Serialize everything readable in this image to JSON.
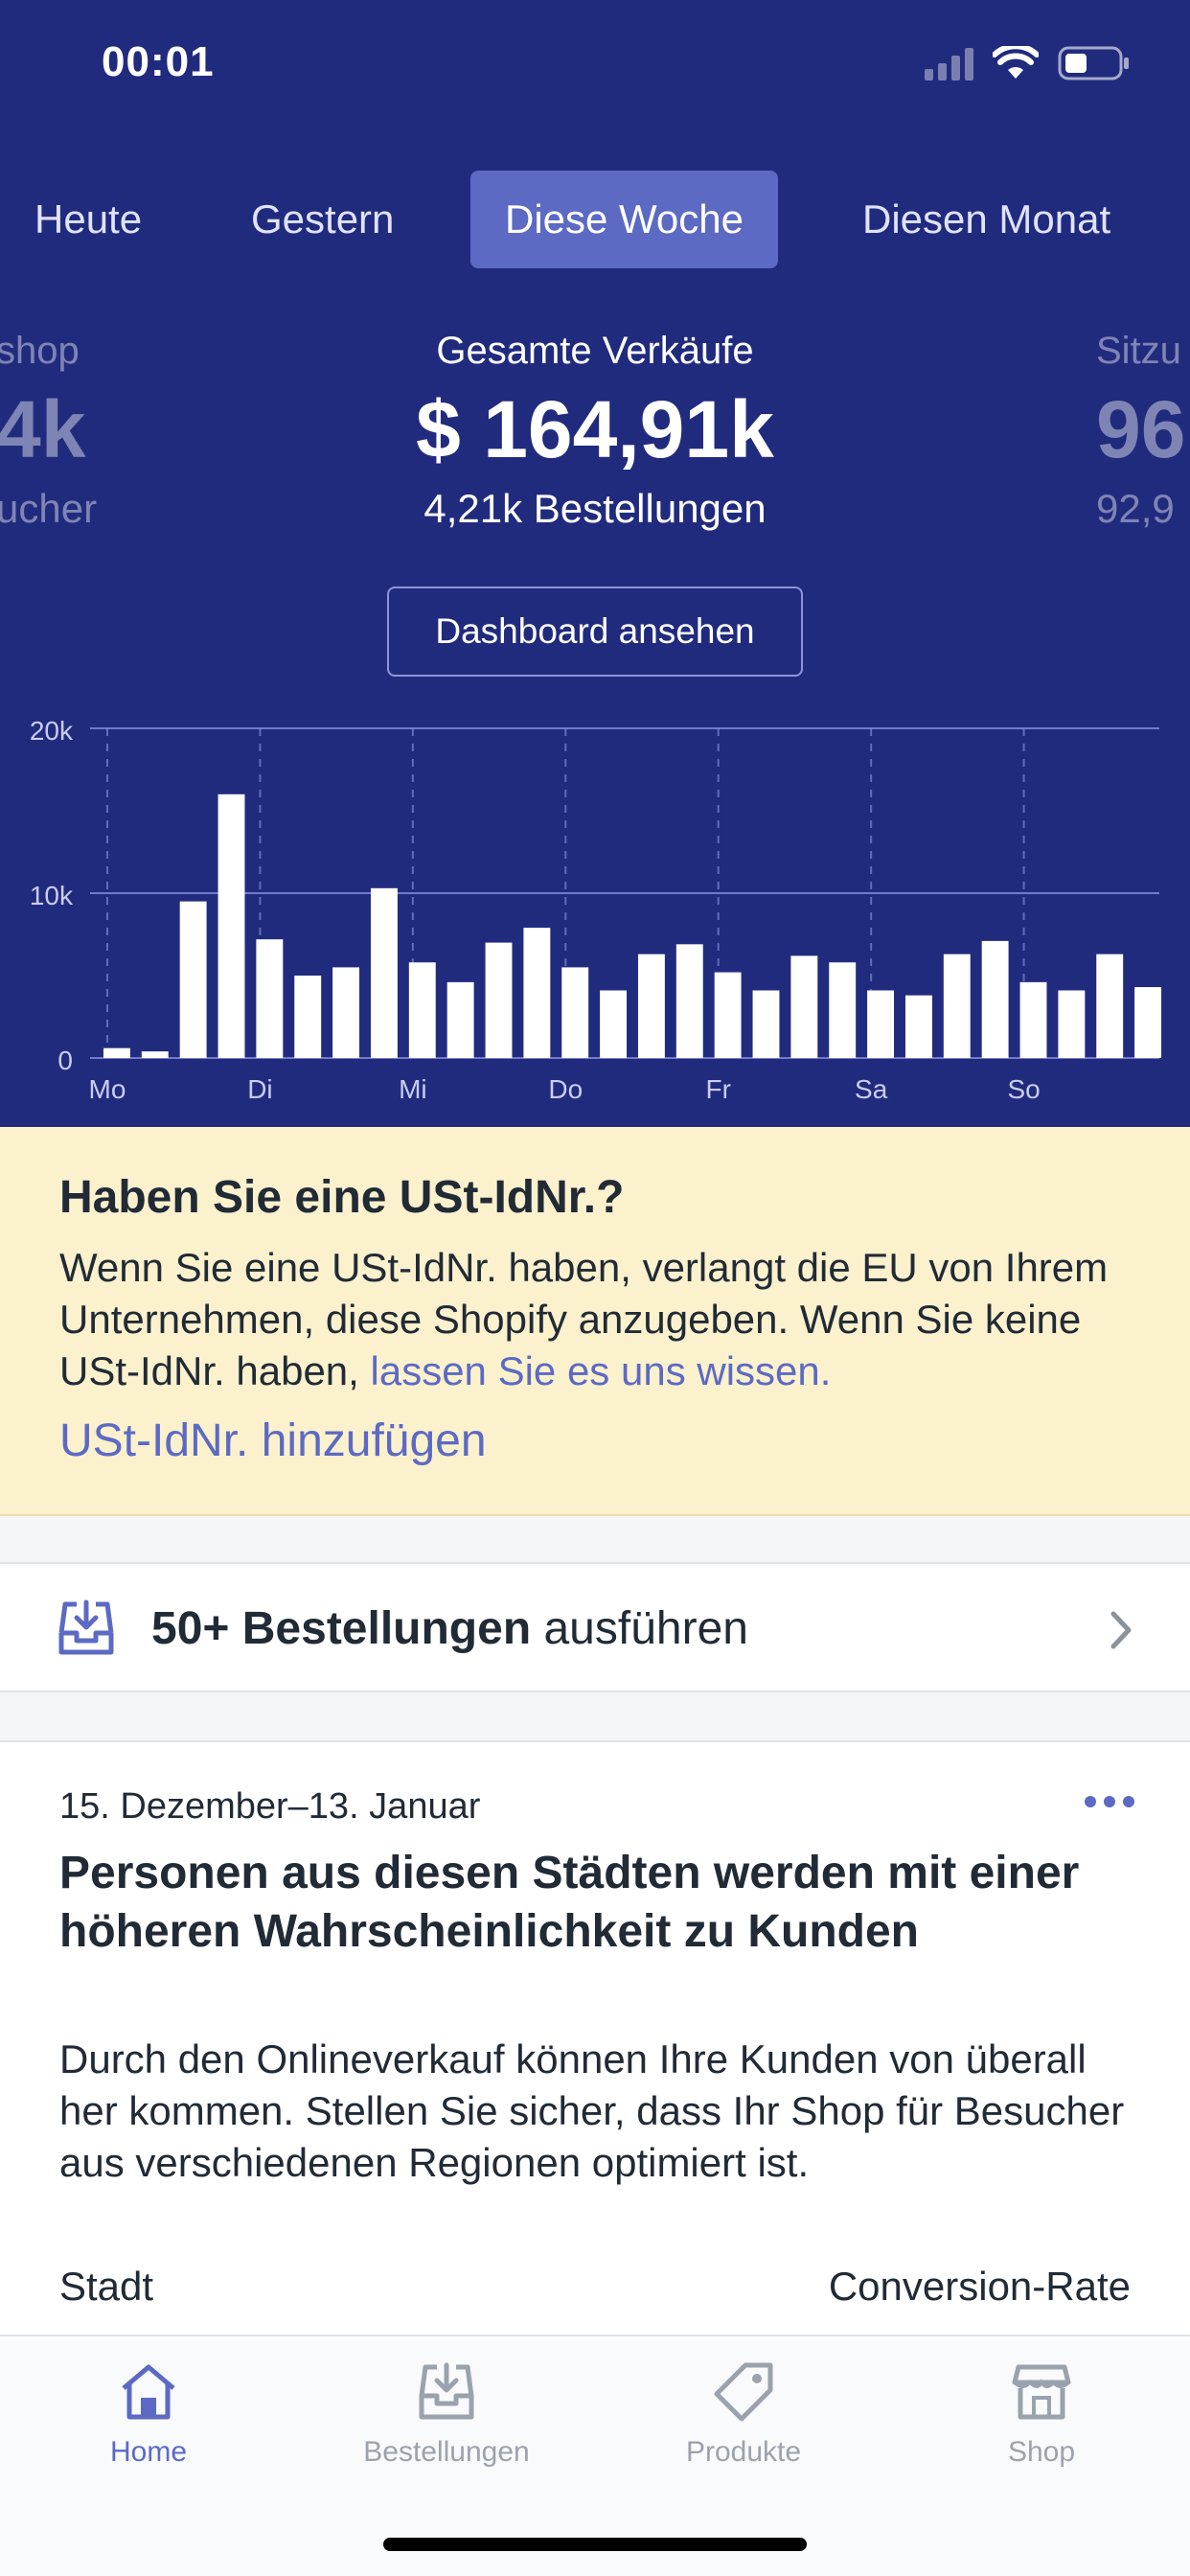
{
  "status_bar": {
    "time": "00:01"
  },
  "period_tabs": [
    {
      "label": "Heute",
      "active": false
    },
    {
      "label": "Gestern",
      "active": false
    },
    {
      "label": "Diese Woche",
      "active": true
    },
    {
      "label": "Diesen Monat",
      "active": false
    }
  ],
  "metrics": {
    "left": {
      "label": "shop",
      "value": "4k",
      "sub": "ucher"
    },
    "center": {
      "label": "Gesamte Verkäufe",
      "value": "$ 164,91k",
      "sub": "4,21k Bestellungen"
    },
    "right": {
      "label": "Sitzu",
      "value": "96",
      "sub": "92,9"
    }
  },
  "dashboard_button": "Dashboard ansehen",
  "chart_data": {
    "type": "bar",
    "title": "",
    "xlabel": "",
    "ylabel": "",
    "ylim": [
      0,
      20000
    ],
    "ytick_labels": [
      "20k",
      "10k",
      "0"
    ],
    "ytick_values": [
      20000,
      10000,
      0
    ],
    "day_labels": [
      "Mo",
      "Di",
      "Mi",
      "Do",
      "Fr",
      "Sa",
      "So"
    ],
    "values": [
      600,
      400,
      9500,
      16000,
      7200,
      5000,
      5500,
      10300,
      5800,
      4600,
      7000,
      7900,
      5500,
      4100,
      6300,
      6900,
      5200,
      4100,
      6200,
      5800,
      4100,
      3800,
      6300,
      7100,
      4600,
      4100,
      6300,
      4300
    ],
    "bars_per_day": 4,
    "grid": true,
    "bar_color": "#ffffff"
  },
  "vat_banner": {
    "title": "Haben Sie eine USt-IdNr.?",
    "body": "Wenn Sie eine USt-IdNr. haben, verlangt die EU von Ihrem Unternehmen, diese Shopify anzugeben. Wenn Sie keine USt-IdNr. haben,",
    "link": "lassen Sie es uns wissen.",
    "action": "USt-IdNr. hinzufügen"
  },
  "orders_row": {
    "count": "50+ Bestellungen",
    "action": "ausführen"
  },
  "insight_card": {
    "date": "15. Dezember–13. Januar",
    "title": "Personen aus diesen Städten werden mit einer höheren Wahrscheinlichkeit zu Kunden",
    "description": "Durch den Onlineverkauf können Ihre Kunden von überall her kommen. Stellen Sie sicher, dass Ihr Shop für Besucher aus verschiedenen Regionen optimiert ist.",
    "col_left": "Stadt",
    "col_right": "Conversion-Rate"
  },
  "tab_bar": [
    {
      "label": "Home",
      "icon": "home-icon",
      "active": true
    },
    {
      "label": "Bestellungen",
      "icon": "orders-icon",
      "active": false
    },
    {
      "label": "Produkte",
      "icon": "tag-icon",
      "active": false
    },
    {
      "label": "Shop",
      "icon": "store-icon",
      "active": false
    }
  ],
  "colors": {
    "hero_bg": "#212b7e",
    "accent": "#5c6ac4",
    "banner_bg": "#fcf1cd",
    "text": "#212b36",
    "inactive": "#9aa3ad"
  }
}
